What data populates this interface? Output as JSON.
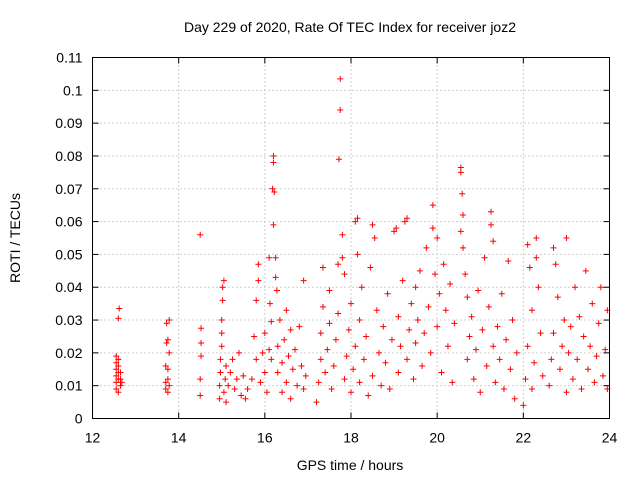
{
  "chart_data": {
    "type": "scatter",
    "title": "Day 229 of 2020, Rate Of TEC Index for receiver joz2",
    "xlabel": "GPS time / hours",
    "ylabel": "ROTI / TECUs",
    "xlim": [
      12,
      24
    ],
    "ylim": [
      0,
      0.11
    ],
    "xticks": [
      "12",
      "14",
      "16",
      "18",
      "20",
      "22",
      "24"
    ],
    "yticks": [
      "0",
      "0.01",
      "0.02",
      "0.03",
      "0.04",
      "0.05",
      "0.06",
      "0.07",
      "0.08",
      "0.09",
      "0.1",
      "0.11"
    ],
    "grid": true,
    "marker": "+",
    "color": "#ff0000",
    "points": [
      [
        12.55,
        0.009
      ],
      [
        12.55,
        0.011
      ],
      [
        12.55,
        0.013
      ],
      [
        12.55,
        0.015
      ],
      [
        12.55,
        0.017
      ],
      [
        12.55,
        0.019
      ],
      [
        12.6,
        0.008
      ],
      [
        12.6,
        0.012
      ],
      [
        12.6,
        0.014
      ],
      [
        12.6,
        0.016
      ],
      [
        12.6,
        0.018
      ],
      [
        12.6,
        0.0305
      ],
      [
        12.62,
        0.0335
      ],
      [
        12.65,
        0.01
      ],
      [
        12.65,
        0.012
      ],
      [
        12.65,
        0.014
      ],
      [
        12.68,
        0.011
      ],
      [
        13.7,
        0.009
      ],
      [
        13.7,
        0.011
      ],
      [
        13.7,
        0.016
      ],
      [
        13.72,
        0.023
      ],
      [
        13.72,
        0.029
      ],
      [
        13.75,
        0.008
      ],
      [
        13.75,
        0.012
      ],
      [
        13.75,
        0.015
      ],
      [
        13.75,
        0.024
      ],
      [
        13.78,
        0.01
      ],
      [
        13.78,
        0.02
      ],
      [
        13.78,
        0.03
      ],
      [
        14.5,
        0.007
      ],
      [
        14.5,
        0.012
      ],
      [
        14.52,
        0.019
      ],
      [
        14.52,
        0.023
      ],
      [
        14.52,
        0.0275
      ],
      [
        14.5,
        0.056
      ],
      [
        14.95,
        0.006
      ],
      [
        14.95,
        0.01
      ],
      [
        14.97,
        0.014
      ],
      [
        14.97,
        0.018
      ],
      [
        15.0,
        0.022
      ],
      [
        15.0,
        0.026
      ],
      [
        15.0,
        0.03
      ],
      [
        15.02,
        0.036
      ],
      [
        15.02,
        0.04
      ],
      [
        15.05,
        0.042
      ],
      [
        15.05,
        0.008
      ],
      [
        15.08,
        0.012
      ],
      [
        15.1,
        0.016
      ],
      [
        15.1,
        0.005
      ],
      [
        15.15,
        0.01
      ],
      [
        15.2,
        0.014
      ],
      [
        15.25,
        0.018
      ],
      [
        15.3,
        0.009
      ],
      [
        15.35,
        0.012
      ],
      [
        15.4,
        0.02
      ],
      [
        15.45,
        0.007
      ],
      [
        15.5,
        0.013
      ],
      [
        15.55,
        0.006
      ],
      [
        15.6,
        0.009
      ],
      [
        15.7,
        0.012
      ],
      [
        15.75,
        0.025
      ],
      [
        15.8,
        0.018
      ],
      [
        15.8,
        0.036
      ],
      [
        15.85,
        0.042
      ],
      [
        15.85,
        0.047
      ],
      [
        15.9,
        0.011
      ],
      [
        15.95,
        0.02
      ],
      [
        16.0,
        0.014
      ],
      [
        16.0,
        0.026
      ],
      [
        16.05,
        0.008
      ],
      [
        16.1,
        0.021
      ],
      [
        16.1,
        0.049
      ],
      [
        16.12,
        0.035
      ],
      [
        16.15,
        0.018
      ],
      [
        16.15,
        0.0295
      ],
      [
        16.2,
        0.08
      ],
      [
        16.2,
        0.078
      ],
      [
        16.18,
        0.07
      ],
      [
        16.22,
        0.069
      ],
      [
        16.2,
        0.059
      ],
      [
        16.25,
        0.049
      ],
      [
        16.25,
        0.043
      ],
      [
        16.28,
        0.039
      ],
      [
        16.3,
        0.014
      ],
      [
        16.3,
        0.022
      ],
      [
        16.35,
        0.03
      ],
      [
        16.4,
        0.008
      ],
      [
        16.4,
        0.017
      ],
      [
        16.45,
        0.024
      ],
      [
        16.5,
        0.033
      ],
      [
        16.5,
        0.011
      ],
      [
        16.55,
        0.019
      ],
      [
        16.6,
        0.027
      ],
      [
        16.6,
        0.006
      ],
      [
        16.65,
        0.015
      ],
      [
        16.7,
        0.021
      ],
      [
        16.75,
        0.01
      ],
      [
        16.8,
        0.028
      ],
      [
        16.85,
        0.016
      ],
      [
        16.9,
        0.042
      ],
      [
        16.9,
        0.009
      ],
      [
        16.95,
        0.013
      ],
      [
        17.2,
        0.005
      ],
      [
        17.25,
        0.011
      ],
      [
        17.3,
        0.018
      ],
      [
        17.3,
        0.026
      ],
      [
        17.35,
        0.034
      ],
      [
        17.35,
        0.046
      ],
      [
        17.4,
        0.014
      ],
      [
        17.45,
        0.021
      ],
      [
        17.5,
        0.029
      ],
      [
        17.5,
        0.039
      ],
      [
        17.55,
        0.009
      ],
      [
        17.6,
        0.016
      ],
      [
        17.65,
        0.024
      ],
      [
        17.7,
        0.032
      ],
      [
        17.7,
        0.047
      ],
      [
        17.75,
        0.1035
      ],
      [
        17.75,
        0.094
      ],
      [
        17.72,
        0.079
      ],
      [
        17.8,
        0.056
      ],
      [
        17.8,
        0.049
      ],
      [
        17.85,
        0.044
      ],
      [
        17.85,
        0.012
      ],
      [
        17.9,
        0.019
      ],
      [
        17.95,
        0.027
      ],
      [
        18.0,
        0.035
      ],
      [
        18.0,
        0.008
      ],
      [
        18.05,
        0.015
      ],
      [
        18.1,
        0.022
      ],
      [
        18.1,
        0.06
      ],
      [
        18.15,
        0.061
      ],
      [
        18.15,
        0.05
      ],
      [
        18.2,
        0.03
      ],
      [
        18.2,
        0.011
      ],
      [
        18.25,
        0.04
      ],
      [
        18.3,
        0.018
      ],
      [
        18.35,
        0.025
      ],
      [
        18.4,
        0.007
      ],
      [
        18.45,
        0.046
      ],
      [
        18.5,
        0.013
      ],
      [
        18.5,
        0.059
      ],
      [
        18.55,
        0.055
      ],
      [
        18.6,
        0.033
      ],
      [
        18.65,
        0.02
      ],
      [
        18.7,
        0.01
      ],
      [
        18.75,
        0.028
      ],
      [
        18.8,
        0.017
      ],
      [
        18.85,
        0.038
      ],
      [
        18.9,
        0.009
      ],
      [
        18.95,
        0.024
      ],
      [
        19.0,
        0.057
      ],
      [
        19.05,
        0.058
      ],
      [
        19.1,
        0.014
      ],
      [
        19.1,
        0.031
      ],
      [
        19.15,
        0.022
      ],
      [
        19.2,
        0.042
      ],
      [
        19.25,
        0.06
      ],
      [
        19.3,
        0.061
      ],
      [
        19.3,
        0.018
      ],
      [
        19.35,
        0.027
      ],
      [
        19.4,
        0.035
      ],
      [
        19.45,
        0.012
      ],
      [
        19.5,
        0.04
      ],
      [
        19.5,
        0.023
      ],
      [
        19.55,
        0.03
      ],
      [
        19.6,
        0.045
      ],
      [
        19.65,
        0.016
      ],
      [
        19.7,
        0.026
      ],
      [
        19.75,
        0.052
      ],
      [
        19.8,
        0.034
      ],
      [
        19.85,
        0.02
      ],
      [
        19.9,
        0.065
      ],
      [
        19.9,
        0.058
      ],
      [
        19.95,
        0.044
      ],
      [
        20.0,
        0.055
      ],
      [
        20.0,
        0.028
      ],
      [
        20.05,
        0.038
      ],
      [
        20.1,
        0.014
      ],
      [
        20.15,
        0.047
      ],
      [
        20.2,
        0.033
      ],
      [
        20.25,
        0.022
      ],
      [
        20.3,
        0.041
      ],
      [
        20.35,
        0.011
      ],
      [
        20.4,
        0.029
      ],
      [
        20.55,
        0.0765
      ],
      [
        20.55,
        0.075
      ],
      [
        20.58,
        0.0685
      ],
      [
        20.6,
        0.062
      ],
      [
        20.55,
        0.057
      ],
      [
        20.6,
        0.052
      ],
      [
        20.65,
        0.044
      ],
      [
        20.7,
        0.037
      ],
      [
        20.7,
        0.018
      ],
      [
        20.75,
        0.025
      ],
      [
        20.8,
        0.031
      ],
      [
        20.85,
        0.012
      ],
      [
        20.9,
        0.021
      ],
      [
        20.95,
        0.039
      ],
      [
        21.0,
        0.008
      ],
      [
        21.05,
        0.027
      ],
      [
        21.1,
        0.049
      ],
      [
        21.15,
        0.016
      ],
      [
        21.2,
        0.034
      ],
      [
        21.25,
        0.063
      ],
      [
        21.25,
        0.059
      ],
      [
        21.3,
        0.054
      ],
      [
        21.3,
        0.022
      ],
      [
        21.35,
        0.011
      ],
      [
        21.4,
        0.028
      ],
      [
        21.45,
        0.018
      ],
      [
        21.5,
        0.038
      ],
      [
        21.55,
        0.009
      ],
      [
        21.6,
        0.024
      ],
      [
        21.65,
        0.048
      ],
      [
        21.7,
        0.015
      ],
      [
        21.75,
        0.03
      ],
      [
        21.8,
        0.006
      ],
      [
        21.85,
        0.02
      ],
      [
        22.0,
        0.004
      ],
      [
        22.05,
        0.012
      ],
      [
        22.1,
        0.022
      ],
      [
        22.1,
        0.053
      ],
      [
        22.15,
        0.046
      ],
      [
        22.2,
        0.033
      ],
      [
        22.2,
        0.009
      ],
      [
        22.25,
        0.017
      ],
      [
        22.3,
        0.055
      ],
      [
        22.3,
        0.049
      ],
      [
        22.35,
        0.04
      ],
      [
        22.4,
        0.026
      ],
      [
        22.45,
        0.013
      ],
      [
        22.6,
        0.01
      ],
      [
        22.65,
        0.018
      ],
      [
        22.7,
        0.026
      ],
      [
        22.7,
        0.052
      ],
      [
        22.75,
        0.047
      ],
      [
        22.8,
        0.037
      ],
      [
        22.85,
        0.015
      ],
      [
        22.9,
        0.022
      ],
      [
        22.95,
        0.03
      ],
      [
        23.0,
        0.055
      ],
      [
        23.0,
        0.008
      ],
      [
        23.05,
        0.02
      ],
      [
        23.1,
        0.028
      ],
      [
        23.15,
        0.012
      ],
      [
        23.2,
        0.04
      ],
      [
        23.25,
        0.018
      ],
      [
        23.3,
        0.031
      ],
      [
        23.35,
        0.009
      ],
      [
        23.4,
        0.025
      ],
      [
        23.45,
        0.045
      ],
      [
        23.5,
        0.015
      ],
      [
        23.55,
        0.022
      ],
      [
        23.6,
        0.035
      ],
      [
        23.65,
        0.011
      ],
      [
        23.7,
        0.019
      ],
      [
        23.75,
        0.029
      ],
      [
        23.8,
        0.04
      ],
      [
        23.85,
        0.013
      ],
      [
        23.9,
        0.021
      ],
      [
        23.95,
        0.033
      ],
      [
        23.95,
        0.009
      ]
    ]
  }
}
